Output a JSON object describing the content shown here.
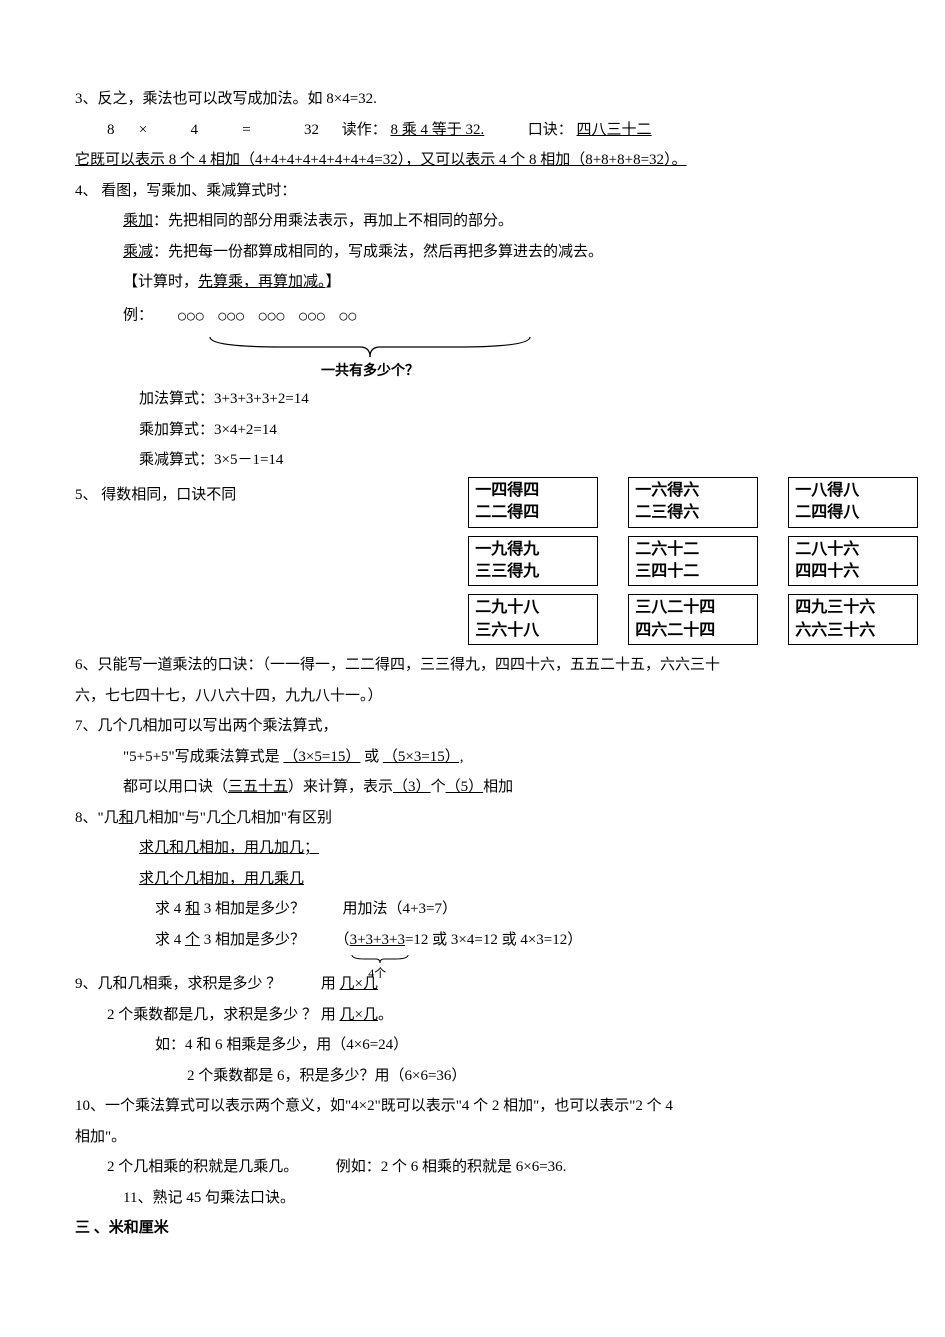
{
  "item3": {
    "line1_a": "3、反之，乘法也可以改写成加法。如 8×4=32.",
    "eq_parts": [
      "8",
      "×",
      "4",
      "=",
      "32"
    ],
    "reads_label": "读作：",
    "reads_val": "8 乘 4 等于 32.",
    "koujue_label": "口诀：",
    "koujue_val": "四八三十二",
    "line3_a": "它既可以表示 8 个 4 相加（",
    "line3_u": "4+4+4+4+4+4+4+4=32",
    "line3_b": "），又可以表示 4 个 8 相加（",
    "line3_u2": "8+8+8+8=32",
    "line3_c": "）。"
  },
  "item4": {
    "title": "4、 看图，写乘加、乘减算式时：",
    "l1_a": "乘加",
    "l1_b": "：先把相同的部分用乘法表示，再加上不相同的部分。",
    "l2_a": "乘减",
    "l2_b": "：先把每一份都算成相同的，写成乘法，然后再把多算进去的减去。",
    "l3_a": "【计算时，",
    "l3_u": "先算乘，再算加减。",
    "l3_b": "】",
    "l4": "例：",
    "circles": [
      "○○○",
      "○○○",
      "○○○",
      "○○○",
      "○○"
    ],
    "brace_label": "一共有多少个？",
    "add_eq": "加法算式：3+3+3+3+2=14",
    "muladd_eq": "乘加算式：3×4+2=14",
    "mulsub_eq": "乘减算式：3×5－1=14"
  },
  "item5": {
    "label": "5、 得数相同，口诀不同",
    "tables": [
      [
        [
          "一四得四",
          "二二得四"
        ],
        [
          "一六得六",
          "二三得六"
        ],
        [
          "一八得八",
          "二四得八"
        ]
      ],
      [
        [
          "一九得九",
          "三三得九"
        ],
        [
          "二六十二",
          "三四十二"
        ],
        [
          "二八十六",
          "四四十六"
        ]
      ],
      [
        [
          "二九十八",
          "三六十八"
        ],
        [
          "三八二十四",
          "四六二十四"
        ],
        [
          "四九三十六",
          "六六三十六"
        ]
      ]
    ]
  },
  "item6": {
    "l1": "6、只能写一道乘法的口诀：（一一得一，二二得四，三三得九，四四十六，五五二十五，六六三十",
    "l2": "六，七七四十七，八八六十四，九九八十一。）"
  },
  "item7": {
    "l1": "7、几个几相加可以写出两个乘法算式，",
    "l2_a": "\"5+5+5\"写成乘法算式是",
    "l2_u1": "（3×5=15）",
    "l2_b": "或",
    "l2_u2": "（5×3=15）,",
    "l3_a": "都可以用口诀（",
    "l3_u1": "三五十五",
    "l3_b": "）来计算，表示",
    "l3_u2": "（3）",
    "l3_c": "个",
    "l3_u3": "（5）",
    "l3_d": "相加"
  },
  "item8": {
    "l1_a": "8、\"几",
    "l1_u": "和",
    "l1_b": "几相加\"与\"几",
    "l1_u2": "个",
    "l1_c": "几相加\"有区别",
    "l2": "求几和几相加，用几加几；",
    "l3": "求几个几相加，用几乘几",
    "l4_a": "求 4 ",
    "l4_u": "和",
    "l4_b": " 3 相加是多少？",
    "l4_c": "用加法（4+3=7）",
    "l5_a": "求 4 ",
    "l5_u": "个",
    "l5_b": " 3 相加是多少？",
    "l5_c": "（",
    "l5_u2": "3+3+3+3",
    "l5_d": "=12 或 3×4=12 或 4×3=12）",
    "l5_sub": "4个"
  },
  "item9": {
    "l1_a": "9、几和几相乘，求积是多少 ？",
    "l1_b": "用 ",
    "l1_u": "几×几",
    "l2_a": "2 个乘数都是几，求积是多少 ？  用 ",
    "l2_u": "几×几",
    "l2_b": "。",
    "l3": "如：4 和 6 相乘是多少，用（4×6=24）",
    "l4": "2 个乘数都是 6，积是多少？用（6×6=36）"
  },
  "item10": {
    "l1": "10、一个乘法算式可以表示两个意义，如\"4×2\"既可以表示\"4 个 2 相加\"，也可以表示\"2 个 4",
    "l2": "相加\"。",
    "l3_a": "2 个几相乘的积就是几乘几。",
    "l3_b": "例如：2 个 6 相乘的积就是 6×6=36."
  },
  "item11": {
    "l1": "11、熟记 45 句乘法口诀。"
  },
  "section3": {
    "title": "三 、米和厘米"
  },
  "colors": {
    "text": "#000000",
    "bg": "#ffffff",
    "border": "#000000"
  }
}
